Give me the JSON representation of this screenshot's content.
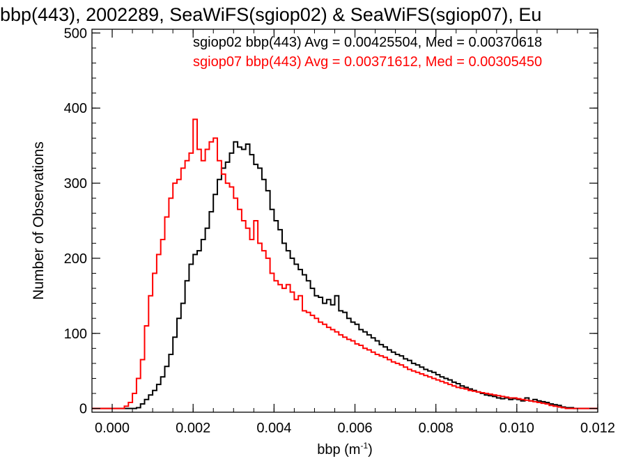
{
  "chart_data": {
    "type": "step",
    "title": "bbp(443), 2002289, SeaWiFS(sgiop02) & SeaWiFS(sgiop07), Eu",
    "xlabel": "bbp (m",
    "xlabel_sup": "-1",
    "xlabel_close": ")",
    "ylabel": "Number of Observations",
    "xlim": [
      -0.0005,
      0.012
    ],
    "ylim": [
      -5,
      505
    ],
    "xticks": [
      0.0,
      0.002,
      0.004,
      0.006,
      0.008,
      0.01,
      0.012
    ],
    "xtick_labels": [
      "0.000",
      "0.002",
      "0.004",
      "0.006",
      "0.008",
      "0.010",
      "0.012"
    ],
    "yticks": [
      0,
      100,
      200,
      300,
      400,
      500
    ],
    "ytick_labels": [
      "0",
      "100",
      "200",
      "300",
      "400",
      "500"
    ],
    "grid": false,
    "series": [
      {
        "name": "sgiop02",
        "stats_label": "sgiop02 bbp(443) Avg = 0.00425504, Med = 0.00370618",
        "color": "#000000",
        "points": [
          [
            -0.0005,
            0
          ],
          [
            0.0004,
            0
          ],
          [
            0.0006,
            1
          ],
          [
            0.0007,
            6
          ],
          [
            0.0008,
            12
          ],
          [
            0.0009,
            18
          ],
          [
            0.001,
            24
          ],
          [
            0.0011,
            32
          ],
          [
            0.0012,
            42
          ],
          [
            0.0013,
            56
          ],
          [
            0.0014,
            72
          ],
          [
            0.0015,
            95
          ],
          [
            0.0016,
            120
          ],
          [
            0.0017,
            140
          ],
          [
            0.0018,
            170
          ],
          [
            0.0019,
            192
          ],
          [
            0.002,
            205
          ],
          [
            0.0021,
            210
          ],
          [
            0.0022,
            225
          ],
          [
            0.0023,
            240
          ],
          [
            0.0024,
            262
          ],
          [
            0.0025,
            285
          ],
          [
            0.0026,
            305
          ],
          [
            0.0027,
            320
          ],
          [
            0.0028,
            328
          ],
          [
            0.0029,
            340
          ],
          [
            0.003,
            355
          ],
          [
            0.0031,
            348
          ],
          [
            0.0032,
            345
          ],
          [
            0.0033,
            352
          ],
          [
            0.0034,
            338
          ],
          [
            0.0035,
            325
          ],
          [
            0.0036,
            320
          ],
          [
            0.0037,
            305
          ],
          [
            0.0038,
            290
          ],
          [
            0.0039,
            265
          ],
          [
            0.004,
            250
          ],
          [
            0.0041,
            238
          ],
          [
            0.0042,
            220
          ],
          [
            0.0043,
            210
          ],
          [
            0.0044,
            200
          ],
          [
            0.0045,
            192
          ],
          [
            0.0046,
            185
          ],
          [
            0.0047,
            178
          ],
          [
            0.0048,
            170
          ],
          [
            0.0049,
            160
          ],
          [
            0.005,
            150
          ],
          [
            0.0051,
            148
          ],
          [
            0.0052,
            140
          ],
          [
            0.0053,
            145
          ],
          [
            0.0054,
            138
          ],
          [
            0.0055,
            150
          ],
          [
            0.0056,
            130
          ],
          [
            0.0057,
            128
          ],
          [
            0.0058,
            120
          ],
          [
            0.0059,
            115
          ],
          [
            0.006,
            112
          ],
          [
            0.0061,
            105
          ],
          [
            0.0062,
            102
          ],
          [
            0.0063,
            98
          ],
          [
            0.0064,
            94
          ],
          [
            0.0065,
            90
          ],
          [
            0.0066,
            85
          ],
          [
            0.0067,
            82
          ],
          [
            0.0068,
            78
          ],
          [
            0.0069,
            75
          ],
          [
            0.007,
            72
          ],
          [
            0.0071,
            70
          ],
          [
            0.0072,
            66
          ],
          [
            0.0073,
            64
          ],
          [
            0.0074,
            60
          ],
          [
            0.0075,
            58
          ],
          [
            0.0076,
            55
          ],
          [
            0.0077,
            52
          ],
          [
            0.0078,
            50
          ],
          [
            0.0079,
            48
          ],
          [
            0.008,
            45
          ],
          [
            0.0081,
            42
          ],
          [
            0.0082,
            40
          ],
          [
            0.0083,
            38
          ],
          [
            0.0084,
            35
          ],
          [
            0.0085,
            33
          ],
          [
            0.0086,
            30
          ],
          [
            0.0087,
            28
          ],
          [
            0.0088,
            26
          ],
          [
            0.0089,
            24
          ],
          [
            0.009,
            22
          ],
          [
            0.0091,
            20
          ],
          [
            0.0092,
            18
          ],
          [
            0.0093,
            17
          ],
          [
            0.0094,
            16
          ],
          [
            0.0095,
            14
          ],
          [
            0.0096,
            13
          ],
          [
            0.0097,
            14
          ],
          [
            0.0098,
            12
          ],
          [
            0.0099,
            13
          ],
          [
            0.01,
            12
          ],
          [
            0.0101,
            10
          ],
          [
            0.0102,
            14
          ],
          [
            0.0103,
            10
          ],
          [
            0.0104,
            12
          ],
          [
            0.0105,
            10
          ],
          [
            0.0106,
            9
          ],
          [
            0.0107,
            8
          ],
          [
            0.0108,
            6
          ],
          [
            0.0109,
            5
          ],
          [
            0.011,
            4
          ],
          [
            0.0111,
            2
          ],
          [
            0.0112,
            1
          ],
          [
            0.0114,
            0
          ],
          [
            0.012,
            0
          ]
        ]
      },
      {
        "name": "sgiop07",
        "stats_label": "sgiop07 bbp(443) Avg = 0.00371612, Med = 0.00305450",
        "color": "#ff0000",
        "points": [
          [
            -0.0005,
            0
          ],
          [
            0.0002,
            0
          ],
          [
            0.0003,
            3
          ],
          [
            0.0004,
            8
          ],
          [
            0.0005,
            20
          ],
          [
            0.0006,
            40
          ],
          [
            0.0007,
            65
          ],
          [
            0.0008,
            110
          ],
          [
            0.0009,
            150
          ],
          [
            0.001,
            180
          ],
          [
            0.0011,
            205
          ],
          [
            0.0012,
            225
          ],
          [
            0.0013,
            255
          ],
          [
            0.0014,
            280
          ],
          [
            0.0015,
            300
          ],
          [
            0.0016,
            305
          ],
          [
            0.0017,
            320
          ],
          [
            0.0018,
            330
          ],
          [
            0.0019,
            340
          ],
          [
            0.002,
            385
          ],
          [
            0.0021,
            345
          ],
          [
            0.0022,
            330
          ],
          [
            0.0023,
            345
          ],
          [
            0.0024,
            355
          ],
          [
            0.0025,
            360
          ],
          [
            0.0026,
            330
          ],
          [
            0.0027,
            312
          ],
          [
            0.0028,
            300
          ],
          [
            0.0029,
            295
          ],
          [
            0.003,
            280
          ],
          [
            0.0031,
            265
          ],
          [
            0.0032,
            250
          ],
          [
            0.0033,
            240
          ],
          [
            0.0034,
            225
          ],
          [
            0.0035,
            250
          ],
          [
            0.0036,
            220
          ],
          [
            0.0037,
            210
          ],
          [
            0.0038,
            200
          ],
          [
            0.0039,
            180
          ],
          [
            0.004,
            170
          ],
          [
            0.0041,
            165
          ],
          [
            0.0042,
            160
          ],
          [
            0.0043,
            165
          ],
          [
            0.0044,
            155
          ],
          [
            0.0045,
            145
          ],
          [
            0.0046,
            150
          ],
          [
            0.0047,
            130
          ],
          [
            0.0048,
            128
          ],
          [
            0.0049,
            124
          ],
          [
            0.005,
            120
          ],
          [
            0.0051,
            115
          ],
          [
            0.0052,
            112
          ],
          [
            0.0053,
            108
          ],
          [
            0.0054,
            105
          ],
          [
            0.0055,
            102
          ],
          [
            0.0056,
            98
          ],
          [
            0.0057,
            95
          ],
          [
            0.0058,
            92
          ],
          [
            0.0059,
            90
          ],
          [
            0.006,
            86
          ],
          [
            0.0061,
            84
          ],
          [
            0.0062,
            80
          ],
          [
            0.0063,
            78
          ],
          [
            0.0064,
            75
          ],
          [
            0.0065,
            72
          ],
          [
            0.0066,
            70
          ],
          [
            0.0067,
            68
          ],
          [
            0.0068,
            65
          ],
          [
            0.0069,
            62
          ],
          [
            0.007,
            60
          ],
          [
            0.0071,
            58
          ],
          [
            0.0072,
            55
          ],
          [
            0.0073,
            52
          ],
          [
            0.0074,
            50
          ],
          [
            0.0075,
            48
          ],
          [
            0.0076,
            46
          ],
          [
            0.0077,
            44
          ],
          [
            0.0078,
            42
          ],
          [
            0.0079,
            40
          ],
          [
            0.008,
            38
          ],
          [
            0.0081,
            36
          ],
          [
            0.0082,
            34
          ],
          [
            0.0083,
            32
          ],
          [
            0.0084,
            30
          ],
          [
            0.0085,
            28
          ],
          [
            0.0086,
            27
          ],
          [
            0.0087,
            26
          ],
          [
            0.0088,
            24
          ],
          [
            0.0089,
            23
          ],
          [
            0.009,
            22
          ],
          [
            0.0091,
            21
          ],
          [
            0.0092,
            20
          ],
          [
            0.0093,
            19
          ],
          [
            0.0094,
            18
          ],
          [
            0.0095,
            17
          ],
          [
            0.0096,
            16
          ],
          [
            0.0097,
            15
          ],
          [
            0.0098,
            14
          ],
          [
            0.0099,
            14
          ],
          [
            0.01,
            13
          ],
          [
            0.0101,
            12
          ],
          [
            0.0102,
            11
          ],
          [
            0.0103,
            10
          ],
          [
            0.0104,
            9
          ],
          [
            0.0105,
            8
          ],
          [
            0.0106,
            7
          ],
          [
            0.0107,
            6
          ],
          [
            0.0108,
            4
          ],
          [
            0.0109,
            3
          ],
          [
            0.011,
            2
          ],
          [
            0.0111,
            1
          ],
          [
            0.0112,
            0
          ],
          [
            0.012,
            0
          ]
        ]
      }
    ]
  }
}
